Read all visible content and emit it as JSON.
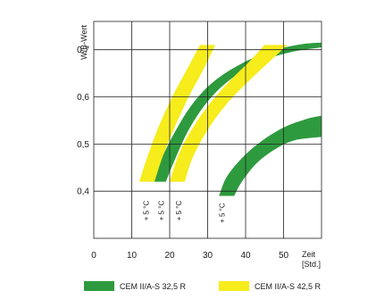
{
  "chart_data": {
    "type": "area",
    "title": "",
    "ylabel": "W/B-Wert",
    "xlabel": "Zeit",
    "xlabel_unit": "[Std.]",
    "xlim": [
      0,
      60
    ],
    "ylim": [
      0.3,
      0.76
    ],
    "x_ticks": [
      0,
      10,
      20,
      30,
      40,
      50
    ],
    "x_tick_labels": [
      "0",
      "10",
      "20",
      "30",
      "40",
      "50"
    ],
    "y_ticks": [
      0.4,
      0.5,
      0.6,
      0.7
    ],
    "y_tick_labels": [
      "0,4",
      "0,5",
      "0,6",
      "0,7"
    ],
    "grid": true,
    "legend_position": "bottom",
    "series": [
      {
        "name": "CEM II/A-S 32,5 R",
        "color": "#2e9a3e",
        "bands": [
          {
            "lower": [
              [
                19,
                0.42
              ],
              [
                21,
                0.46
              ],
              [
                25,
                0.53
              ],
              [
                30,
                0.59
              ],
              [
                36,
                0.637
              ],
              [
                44,
                0.675
              ],
              [
                52,
                0.695
              ],
              [
                60,
                0.705
              ]
            ],
            "upper": [
              [
                15,
                0.42
              ],
              [
                17,
                0.455
              ],
              [
                21,
                0.52
              ],
              [
                26,
                0.585
              ],
              [
                32,
                0.635
              ],
              [
                40,
                0.675
              ],
              [
                48,
                0.7
              ],
              [
                55,
                0.712
              ],
              [
                60,
                0.715
              ]
            ]
          },
          {
            "lower": [
              [
                37,
                0.39
              ],
              [
                39,
                0.42
              ],
              [
                43,
                0.46
              ],
              [
                48,
                0.49
              ],
              [
                53,
                0.508
              ],
              [
                60,
                0.515
              ]
            ],
            "upper": [
              [
                33,
                0.39
              ],
              [
                35,
                0.43
              ],
              [
                39,
                0.47
              ],
              [
                44,
                0.505
              ],
              [
                50,
                0.535
              ],
              [
                56,
                0.553
              ],
              [
                60,
                0.56
              ]
            ]
          }
        ]
      },
      {
        "name": "CEM II/A-S 42,5 R",
        "color": "#f7ec1c",
        "bands": [
          {
            "lower": [
              [
                16,
                0.42
              ],
              [
                18,
                0.47
              ],
              [
                21,
                0.53
              ],
              [
                25,
                0.6
              ],
              [
                29,
                0.66
              ],
              [
                32,
                0.71
              ]
            ],
            "upper": [
              [
                12,
                0.42
              ],
              [
                14,
                0.47
              ],
              [
                17,
                0.535
              ],
              [
                21,
                0.605
              ],
              [
                25,
                0.665
              ],
              [
                28,
                0.71
              ]
            ]
          },
          {
            "lower": [
              [
                24,
                0.42
              ],
              [
                26,
                0.47
              ],
              [
                30,
                0.53
              ],
              [
                35,
                0.585
              ],
              [
                41,
                0.635
              ],
              [
                47,
                0.68
              ],
              [
                51,
                0.71
              ]
            ],
            "upper": [
              [
                20,
                0.42
              ],
              [
                22,
                0.47
              ],
              [
                25,
                0.52
              ],
              [
                30,
                0.58
              ],
              [
                36,
                0.635
              ],
              [
                41,
                0.675
              ],
              [
                45,
                0.71
              ]
            ]
          }
        ]
      }
    ],
    "annotations": [
      {
        "text": "+ 5 °C",
        "x": 14.5,
        "y": 0.38
      },
      {
        "text": "+ 5 °C",
        "x": 18.5,
        "y": 0.38
      },
      {
        "text": "+ 5 °C",
        "x": 23,
        "y": 0.38
      },
      {
        "text": "+ 5 °C",
        "x": 34.5,
        "y": 0.375
      }
    ],
    "legend": [
      {
        "label": "CEM II/A-S 32,5 R",
        "color": "#2e9a3e"
      },
      {
        "label": "CEM II/A-S 42,5 R",
        "color": "#f7ec1c"
      }
    ]
  }
}
